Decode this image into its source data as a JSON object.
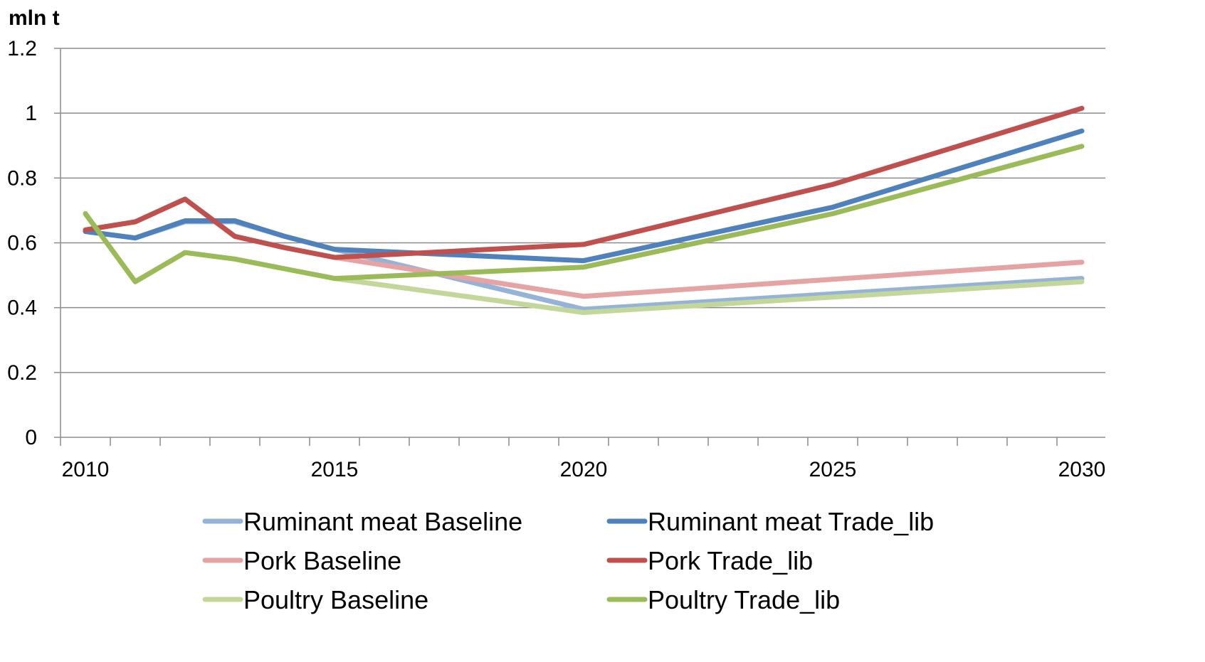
{
  "chart_data": {
    "type": "line",
    "title": "",
    "ylabel": "mln t",
    "xlabel": "",
    "ylim": [
      0,
      1.2
    ],
    "xlim": [
      2010,
      2030
    ],
    "y_ticks": [
      "0",
      "0.2",
      "0.4",
      "0.6",
      "0.8",
      "1",
      "1.2"
    ],
    "x_tick_labels": [
      "2010",
      "2015",
      "2020",
      "2025",
      "2030"
    ],
    "grid": true,
    "legend_position": "bottom",
    "series": [
      {
        "name": "Ruminant meat Baseline",
        "color": "#95B3D7",
        "x": [
          2010,
          2011,
          2012,
          2013,
          2014,
          2015,
          2020,
          2030
        ],
        "values": [
          0.635,
          0.615,
          0.665,
          0.665,
          0.62,
          0.58,
          0.395,
          0.49
        ]
      },
      {
        "name": "Ruminant meat Trade_lib",
        "color": "#4F81BD",
        "x": [
          2010,
          2011,
          2012,
          2013,
          2014,
          2015,
          2020,
          2025,
          2030
        ],
        "values": [
          0.635,
          0.615,
          0.668,
          0.668,
          0.62,
          0.58,
          0.545,
          0.71,
          0.945
        ]
      },
      {
        "name": "Pork Baseline",
        "color": "#E6A3A3",
        "x": [
          2010,
          2011,
          2012,
          2013,
          2014,
          2015,
          2020,
          2030
        ],
        "values": [
          0.64,
          0.665,
          0.735,
          0.62,
          0.585,
          0.555,
          0.435,
          0.54
        ]
      },
      {
        "name": "Pork Trade_lib",
        "color": "#C0504D",
        "x": [
          2010,
          2011,
          2012,
          2013,
          2014,
          2015,
          2020,
          2025,
          2030
        ],
        "values": [
          0.64,
          0.665,
          0.735,
          0.62,
          0.585,
          0.555,
          0.595,
          0.78,
          1.015
        ]
      },
      {
        "name": "Poultry Baseline",
        "color": "#C4D79B",
        "x": [
          2010,
          2011,
          2012,
          2013,
          2014,
          2015,
          2020,
          2030
        ],
        "values": [
          0.69,
          0.48,
          0.57,
          0.55,
          0.52,
          0.49,
          0.385,
          0.48
        ]
      },
      {
        "name": "Poultry Trade_lib",
        "color": "#9BBB59",
        "x": [
          2010,
          2011,
          2012,
          2013,
          2014,
          2015,
          2020,
          2025,
          2030
        ],
        "values": [
          0.69,
          0.48,
          0.57,
          0.55,
          0.52,
          0.49,
          0.525,
          0.69,
          0.898
        ]
      }
    ]
  }
}
